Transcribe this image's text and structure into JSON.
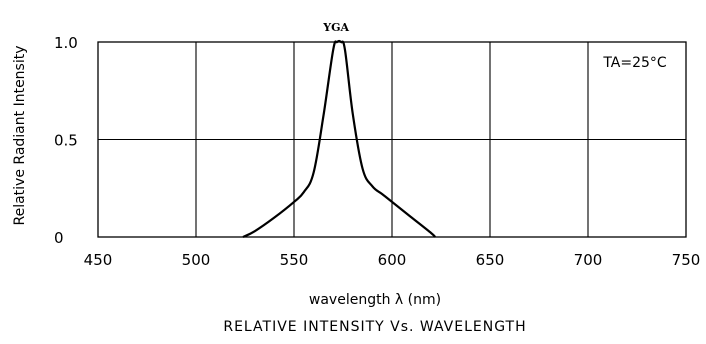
{
  "chart_data": {
    "type": "line",
    "title": "RELATIVE INTENSITY Vs. WAVELENGTH",
    "xlabel": "wavelength λ  (nm)",
    "ylabel": "Relative Radiant Intensity",
    "xlim": [
      450,
      750
    ],
    "ylim": [
      0,
      1.0
    ],
    "x_ticks": [
      "450",
      "500",
      "550",
      "600",
      "650",
      "700",
      "750"
    ],
    "y_ticks": [
      "0",
      "0.5",
      "1.0"
    ],
    "grid": true,
    "annotation": "TA=25°C",
    "series": [
      {
        "name": "YGA",
        "x": [
          524,
          530,
          540,
          550,
          555,
          560,
          565,
          570,
          572,
          574,
          576,
          580,
          585,
          590,
          595,
          600,
          610,
          620,
          622
        ],
        "y": [
          0.0,
          0.03,
          0.1,
          0.18,
          0.23,
          0.33,
          0.62,
          0.96,
          1.0,
          1.0,
          0.96,
          0.63,
          0.35,
          0.26,
          0.22,
          0.18,
          0.1,
          0.02,
          0.0
        ]
      }
    ]
  }
}
